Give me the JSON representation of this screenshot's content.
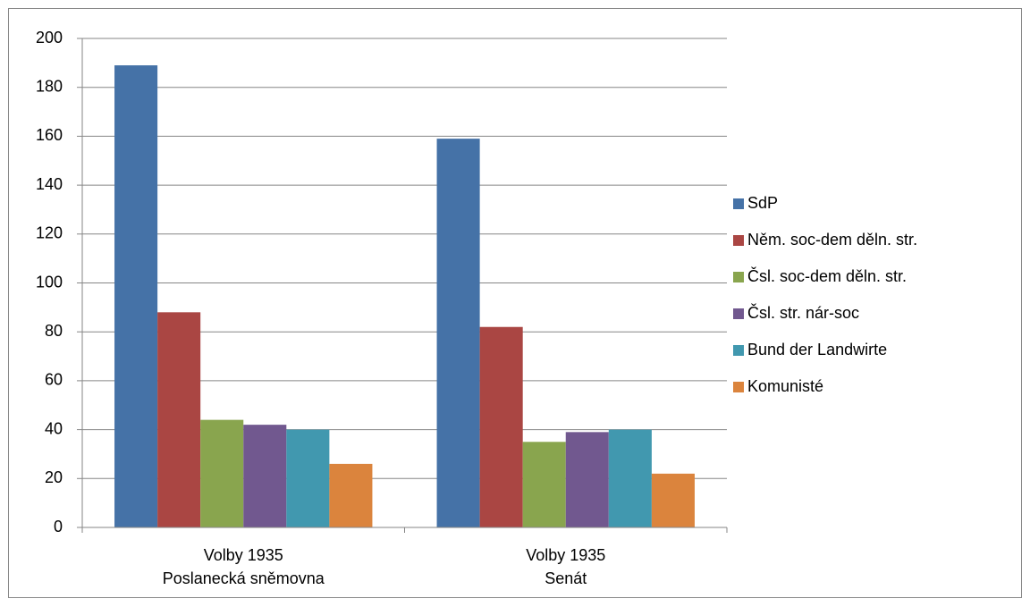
{
  "chart_data": {
    "type": "bar",
    "categories": [
      "Volby 1935\nPoslanecká sněmovna",
      "Volby 1935\nSenát"
    ],
    "series": [
      {
        "name": "SdP",
        "color": "#4572a7",
        "values": [
          189,
          159
        ]
      },
      {
        "name": "Něm. soc-dem děln. str.",
        "color": "#aa4643",
        "values": [
          88,
          82
        ]
      },
      {
        "name": "Čsl. soc-dem děln. str.",
        "color": "#89a54e",
        "values": [
          44,
          35
        ]
      },
      {
        "name": "Čsl. str. nár-soc",
        "color": "#71588f",
        "values": [
          42,
          39
        ]
      },
      {
        "name": "Bund der Landwirte",
        "color": "#4198af",
        "values": [
          40,
          40
        ]
      },
      {
        "name": "Komunisté",
        "color": "#db843d",
        "values": [
          26,
          22
        ]
      }
    ],
    "ylim": [
      0,
      200
    ],
    "yticks": [
      0,
      20,
      40,
      60,
      80,
      100,
      120,
      140,
      160,
      180,
      200
    ],
    "grid": true,
    "legend": "right"
  }
}
